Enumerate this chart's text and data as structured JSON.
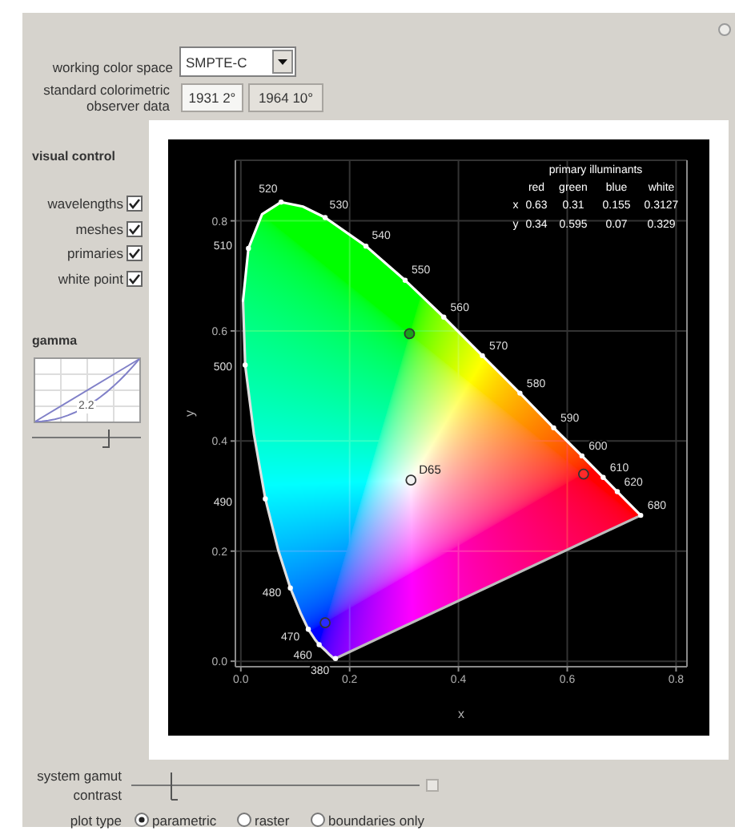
{
  "chart_data": {
    "type": "line",
    "xlabel": "x",
    "ylabel": "y",
    "xlim": [
      -0.01,
      0.82
    ],
    "ylim": [
      -0.01,
      0.91
    ],
    "xticks": [
      {
        "value": 0,
        "label": "0.0"
      },
      0.2,
      0.4,
      0.6,
      {
        "value": 0.8,
        "label": "0.8"
      }
    ],
    "yticks": [
      {
        "value": 0,
        "label": "0.0"
      },
      0.2,
      0.4,
      0.6,
      {
        "value": 0.8,
        "label": "0.8"
      }
    ],
    "grid": true,
    "series": [
      {
        "type": "line",
        "color": "#e0e0e0",
        "x": [
          0.174,
          0.171,
          0.164,
          0.157,
          0.144,
          0.136,
          0.124,
          0.11,
          0.091,
          0.069,
          0.045,
          0.024,
          0.008,
          0.004
        ],
        "values": [
          0.005,
          0.005,
          0.011,
          0.018,
          0.03,
          0.04,
          0.058,
          0.087,
          0.133,
          0.201,
          0.295,
          0.413,
          0.538,
          0.655
        ]
      },
      {
        "type": "line",
        "color": "#ffffff",
        "x": [
          0.004,
          0.014,
          0.039,
          0.074,
          0.114,
          0.155,
          0.23,
          0.302,
          0.373,
          0.444,
          0.513,
          0.575,
          0.627,
          0.666,
          0.692,
          0.708,
          0.719,
          0.73,
          0.735
        ],
        "values": [
          0.655,
          0.75,
          0.812,
          0.834,
          0.826,
          0.806,
          0.754,
          0.692,
          0.625,
          0.555,
          0.487,
          0.424,
          0.373,
          0.334,
          0.308,
          0.292,
          0.281,
          0.27,
          0.265
        ]
      },
      {
        "type": "line",
        "color": "#bdbdbd",
        "x": [
          0.735,
          0.174
        ],
        "values": [
          0.265,
          0.005
        ]
      },
      {
        "type": "scatter",
        "color": "#ffffff",
        "marker": "circle",
        "x": [
          0.174,
          0.144,
          0.124,
          0.091,
          0.045,
          0.008,
          0.014,
          0.074,
          0.155,
          0.23,
          0.302,
          0.373,
          0.444,
          0.513,
          0.575,
          0.627,
          0.666,
          0.692,
          0.735
        ],
        "values": [
          0.005,
          0.03,
          0.058,
          0.133,
          0.295,
          0.538,
          0.75,
          0.834,
          0.806,
          0.754,
          0.692,
          0.625,
          0.555,
          0.487,
          0.424,
          0.373,
          0.334,
          0.308,
          0.265
        ]
      },
      {
        "type": "scatter",
        "marker": "circle",
        "colors": [
          "#ff2a2a",
          "#19a019",
          "#2a2aff"
        ],
        "x": [
          0.63,
          0.31,
          0.155
        ],
        "values": [
          0.34,
          0.595,
          0.07
        ]
      },
      {
        "type": "scatter",
        "name": "D65",
        "color": "#f2f2f2",
        "marker": "circle",
        "x": [
          0.3127
        ],
        "values": [
          0.329
        ]
      }
    ],
    "annotations": [
      "working color space",
      "SMPTE-C",
      "standard colorimetric observer data",
      "1931 2°",
      "1964 10°",
      "visual control",
      "wavelengths",
      "meshes",
      "primaries",
      "white point",
      "gamma",
      "2.2",
      "system gamut contrast",
      "plot type",
      "parametric",
      "raster",
      "boundaries only",
      "primary illuminants",
      "red",
      "green",
      "blue",
      "white",
      "x",
      "0.63",
      "0.31",
      "0.155",
      "0.3127",
      "y",
      "0.34",
      "0.595",
      "0.07",
      "0.329",
      {
        "text": "380",
        "x": 0.174,
        "y": 0.005
      },
      {
        "text": "460",
        "x": 0.144,
        "y": 0.03
      },
      {
        "text": "470",
        "x": 0.124,
        "y": 0.058
      },
      {
        "text": "480",
        "x": 0.091,
        "y": 0.133
      },
      {
        "text": "490",
        "x": 0.045,
        "y": 0.295
      },
      {
        "text": "500",
        "x": 0.008,
        "y": 0.538
      },
      {
        "text": "510",
        "x": 0.014,
        "y": 0.75
      },
      {
        "text": "520",
        "x": 0.074,
        "y": 0.834
      },
      {
        "text": "530",
        "x": 0.155,
        "y": 0.806
      },
      {
        "text": "540",
        "x": 0.23,
        "y": 0.754
      },
      {
        "text": "550",
        "x": 0.302,
        "y": 0.692
      },
      {
        "text": "560",
        "x": 0.373,
        "y": 0.625
      },
      {
        "text": "570",
        "x": 0.444,
        "y": 0.555
      },
      {
        "text": "580",
        "x": 0.513,
        "y": 0.487
      },
      {
        "text": "590",
        "x": 0.575,
        "y": 0.424
      },
      {
        "text": "600",
        "x": 0.627,
        "y": 0.373
      },
      {
        "text": "610",
        "x": 0.666,
        "y": 0.334
      },
      {
        "text": "620",
        "x": 0.692,
        "y": 0.308
      },
      {
        "text": "680",
        "x": 0.735,
        "y": 0.265
      }
    ]
  }
}
